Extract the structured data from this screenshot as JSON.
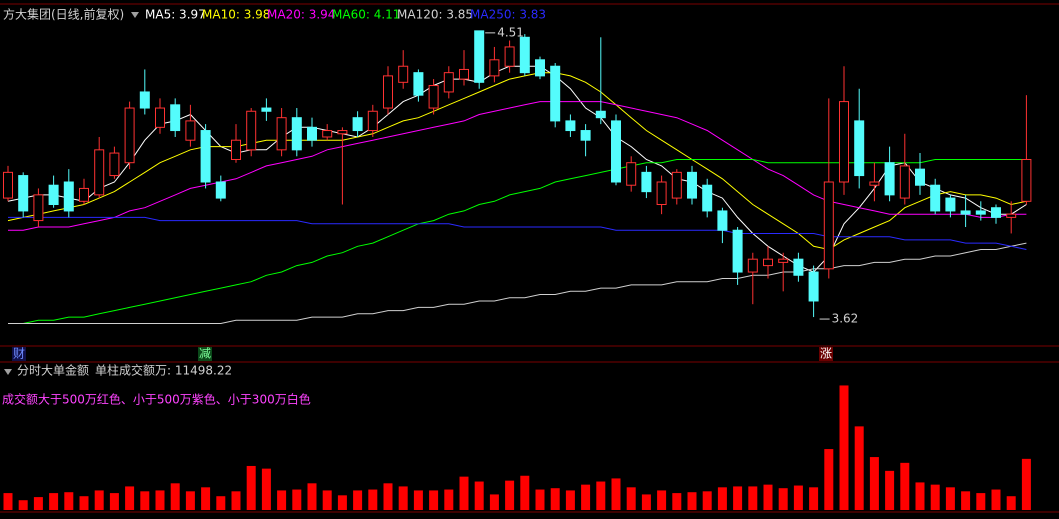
{
  "chart_data": [
    {
      "type": "candlestick",
      "title": "方大集团(日线,前复权)",
      "open": [
        3.99,
        4.06,
        3.92,
        4.03,
        4.04,
        3.98,
        4.0,
        4.06,
        4.1,
        4.32,
        4.21,
        4.28,
        4.17,
        4.2,
        4.04,
        4.11,
        4.14,
        4.27,
        4.14,
        4.24,
        4.21,
        4.18,
        4.19,
        4.24,
        4.2,
        4.27,
        4.35,
        4.38,
        4.27,
        4.32,
        4.36,
        4.51,
        4.37,
        4.4,
        4.49,
        4.42,
        4.4,
        4.23,
        4.2,
        4.26,
        4.23,
        4.03,
        4.07,
        3.97,
        3.99,
        4.07,
        4.03,
        3.95,
        3.89,
        3.76,
        3.78,
        3.79,
        3.8,
        3.76,
        3.77,
        4.04,
        4.23,
        4.03,
        4.1,
        3.99,
        4.08,
        4.03,
        3.99,
        3.95,
        3.95,
        3.96,
        3.93,
        3.98
      ],
      "high": [
        4.09,
        4.07,
        4.02,
        4.06,
        4.08,
        4.05,
        4.18,
        4.15,
        4.29,
        4.39,
        4.3,
        4.3,
        4.28,
        4.22,
        4.06,
        4.22,
        4.27,
        4.3,
        4.27,
        4.27,
        4.24,
        4.22,
        4.21,
        4.26,
        4.28,
        4.4,
        4.45,
        4.39,
        4.36,
        4.4,
        4.45,
        4.51,
        4.46,
        4.48,
        4.5,
        4.43,
        4.41,
        4.25,
        4.22,
        4.49,
        4.25,
        4.12,
        4.09,
        4.06,
        4.08,
        4.09,
        4.05,
        3.96,
        3.9,
        3.82,
        3.84,
        3.82,
        3.82,
        3.78,
        4.3,
        4.4,
        4.33,
        4.1,
        4.15,
        4.19,
        4.13,
        4.05,
        4.0,
        4.0,
        3.98,
        3.97,
        3.98,
        4.31
      ],
      "low": [
        3.98,
        3.93,
        3.9,
        3.96,
        3.93,
        3.97,
        3.99,
        4.05,
        4.08,
        4.25,
        4.19,
        4.18,
        4.15,
        4.02,
        3.98,
        4.1,
        4.12,
        4.23,
        4.12,
        4.12,
        4.15,
        4.17,
        3.97,
        4.18,
        4.18,
        4.25,
        4.33,
        4.29,
        4.25,
        4.3,
        4.34,
        4.33,
        4.35,
        4.38,
        4.37,
        4.36,
        4.21,
        4.18,
        4.12,
        4.22,
        4.03,
        4.01,
        3.99,
        3.94,
        3.97,
        3.97,
        3.93,
        3.85,
        3.72,
        3.66,
        3.74,
        3.7,
        3.73,
        3.62,
        3.74,
        4.0,
        4.02,
        3.98,
        3.98,
        3.97,
        4.0,
        3.94,
        3.93,
        3.9,
        3.92,
        3.91,
        3.88,
        3.97
      ],
      "close": [
        4.07,
        3.95,
        4.0,
        3.97,
        3.95,
        4.02,
        4.14,
        4.13,
        4.27,
        4.27,
        4.27,
        4.2,
        4.23,
        4.04,
        3.99,
        4.17,
        4.26,
        4.26,
        4.24,
        4.14,
        4.17,
        4.2,
        4.2,
        4.2,
        4.26,
        4.37,
        4.4,
        4.31,
        4.34,
        4.38,
        4.39,
        4.35,
        4.42,
        4.46,
        4.38,
        4.37,
        4.23,
        4.2,
        4.17,
        4.24,
        4.04,
        4.1,
        4.01,
        4.04,
        4.07,
        3.99,
        3.95,
        3.89,
        3.76,
        3.8,
        3.8,
        3.8,
        3.75,
        3.67,
        4.04,
        4.29,
        4.06,
        4.04,
        4.0,
        4.09,
        4.03,
        3.95,
        3.95,
        3.94,
        3.94,
        3.93,
        3.94,
        4.11
      ],
      "up_color": "#ff3232",
      "down_color": "#54fcfc",
      "series": [
        {
          "name": "MA5: 3.97",
          "color": "#ffffff",
          "values": [
            3.98,
            3.99,
            4.0,
            4.0,
            3.99,
            3.98,
            4.02,
            4.04,
            4.1,
            4.17,
            4.22,
            4.23,
            4.25,
            4.2,
            4.15,
            4.13,
            4.14,
            4.14,
            4.18,
            4.21,
            4.21,
            4.2,
            4.19,
            4.18,
            4.21,
            4.25,
            4.29,
            4.31,
            4.34,
            4.36,
            4.36,
            4.35,
            4.38,
            4.4,
            4.4,
            4.4,
            4.37,
            4.33,
            4.27,
            4.24,
            4.18,
            4.15,
            4.11,
            4.09,
            4.05,
            4.04,
            4.01,
            3.99,
            3.93,
            3.88,
            3.84,
            3.81,
            3.78,
            3.76,
            3.81,
            3.91,
            3.96,
            4.02,
            4.09,
            4.1,
            4.04,
            4.02,
            4.0,
            3.99,
            3.96,
            3.94,
            3.94,
            3.97
          ]
        },
        {
          "name": "MA10: 3.98",
          "color": "#ffff00",
          "values": [
            3.92,
            3.93,
            3.94,
            3.95,
            3.96,
            3.97,
            3.99,
            4.01,
            4.04,
            4.07,
            4.1,
            4.12,
            4.14,
            4.15,
            4.15,
            4.15,
            4.16,
            4.17,
            4.17,
            4.17,
            4.17,
            4.17,
            4.17,
            4.18,
            4.19,
            4.21,
            4.23,
            4.24,
            4.26,
            4.28,
            4.3,
            4.32,
            4.34,
            4.36,
            4.37,
            4.38,
            4.38,
            4.37,
            4.35,
            4.32,
            4.28,
            4.24,
            4.2,
            4.17,
            4.14,
            4.11,
            4.08,
            4.05,
            4.01,
            3.97,
            3.94,
            3.91,
            3.88,
            3.84,
            3.83,
            3.86,
            3.88,
            3.9,
            3.92,
            3.96,
            3.98,
            4.0,
            4.01,
            4.0,
            4.0,
            3.99,
            3.97,
            3.98
          ]
        },
        {
          "name": "MA20: 3.94",
          "color": "#ff00ff",
          "values": [
            3.89,
            3.89,
            3.9,
            3.9,
            3.9,
            3.91,
            3.92,
            3.93,
            3.95,
            3.96,
            3.98,
            4.0,
            4.02,
            4.03,
            4.04,
            4.05,
            4.07,
            4.09,
            4.1,
            4.11,
            4.12,
            4.14,
            4.15,
            4.16,
            4.17,
            4.18,
            4.19,
            4.2,
            4.21,
            4.22,
            4.23,
            4.25,
            4.26,
            4.27,
            4.28,
            4.29,
            4.29,
            4.29,
            4.29,
            4.29,
            4.28,
            4.27,
            4.26,
            4.25,
            4.24,
            4.22,
            4.2,
            4.17,
            4.14,
            4.11,
            4.08,
            4.06,
            4.03,
            4.0,
            3.98,
            3.97,
            3.96,
            3.95,
            3.94,
            3.94,
            3.94,
            3.94,
            3.94,
            3.94,
            3.93,
            3.93,
            3.94,
            3.94
          ]
        },
        {
          "name": "MA60: 4.11",
          "color": "#00ff00",
          "values": [
            3.6,
            3.6,
            3.61,
            3.61,
            3.62,
            3.62,
            3.63,
            3.64,
            3.65,
            3.66,
            3.67,
            3.68,
            3.69,
            3.7,
            3.71,
            3.72,
            3.73,
            3.75,
            3.76,
            3.78,
            3.79,
            3.81,
            3.82,
            3.84,
            3.85,
            3.87,
            3.89,
            3.91,
            3.92,
            3.94,
            3.95,
            3.97,
            3.98,
            4.0,
            4.01,
            4.02,
            4.04,
            4.05,
            4.06,
            4.07,
            4.08,
            4.09,
            4.1,
            4.1,
            4.11,
            4.11,
            4.11,
            4.11,
            4.11,
            4.11,
            4.1,
            4.1,
            4.1,
            4.1,
            4.1,
            4.1,
            4.1,
            4.1,
            4.1,
            4.1,
            4.1,
            4.11,
            4.11,
            4.11,
            4.11,
            4.11,
            4.11,
            4.11
          ]
        },
        {
          "name": "MA120: 3.85",
          "color": "#d0d0d0",
          "values": [
            3.6,
            3.6,
            3.6,
            3.6,
            3.6,
            3.6,
            3.6,
            3.6,
            3.6,
            3.6,
            3.6,
            3.6,
            3.6,
            3.6,
            3.6,
            3.61,
            3.61,
            3.61,
            3.61,
            3.61,
            3.62,
            3.62,
            3.62,
            3.63,
            3.63,
            3.64,
            3.64,
            3.65,
            3.65,
            3.66,
            3.66,
            3.67,
            3.67,
            3.68,
            3.68,
            3.69,
            3.69,
            3.7,
            3.7,
            3.71,
            3.71,
            3.72,
            3.72,
            3.72,
            3.73,
            3.73,
            3.73,
            3.74,
            3.74,
            3.75,
            3.75,
            3.76,
            3.76,
            3.77,
            3.77,
            3.78,
            3.78,
            3.79,
            3.79,
            3.8,
            3.8,
            3.81,
            3.81,
            3.82,
            3.83,
            3.83,
            3.84,
            3.85
          ]
        },
        {
          "name": "MA250: 3.83",
          "color": "#2a2aff",
          "values": [
            3.93,
            3.93,
            3.93,
            3.93,
            3.93,
            3.93,
            3.93,
            3.93,
            3.93,
            3.93,
            3.92,
            3.92,
            3.92,
            3.92,
            3.92,
            3.92,
            3.92,
            3.92,
            3.92,
            3.92,
            3.91,
            3.91,
            3.91,
            3.91,
            3.91,
            3.91,
            3.91,
            3.91,
            3.91,
            3.91,
            3.9,
            3.9,
            3.9,
            3.9,
            3.9,
            3.9,
            3.9,
            3.9,
            3.9,
            3.9,
            3.89,
            3.89,
            3.89,
            3.89,
            3.89,
            3.89,
            3.89,
            3.89,
            3.88,
            3.88,
            3.88,
            3.88,
            3.88,
            3.88,
            3.87,
            3.87,
            3.87,
            3.87,
            3.87,
            3.86,
            3.86,
            3.86,
            3.86,
            3.85,
            3.85,
            3.85,
            3.84,
            3.83
          ]
        }
      ],
      "ylim": [
        3.53,
        4.55
      ],
      "high_label": 4.51,
      "low_label": 3.62
    },
    {
      "type": "bar",
      "title": "分时大单金额",
      "subtitle": "单柱成交额万: 11498.22",
      "annotation": "成交额大于500万红色、小于500万紫色、小于300万白色",
      "values": [
        3800,
        2200,
        2900,
        3800,
        4000,
        3100,
        4400,
        3800,
        5300,
        4200,
        4400,
        6000,
        4200,
        5100,
        3100,
        4200,
        9900,
        9300,
        4400,
        4600,
        6000,
        4400,
        3300,
        4400,
        4600,
        6000,
        5300,
        4400,
        4400,
        4600,
        7500,
        6400,
        3500,
        6600,
        7700,
        4600,
        4900,
        4400,
        5700,
        6400,
        7100,
        5100,
        3500,
        4400,
        3800,
        4000,
        4200,
        5100,
        5300,
        5300,
        5700,
        4900,
        5500,
        5100,
        13700,
        28000,
        18800,
        11900,
        8800,
        10600,
        6200,
        5700,
        5100,
        4200,
        3800,
        4600,
        3100,
        11498.22
      ],
      "color": "#ff0000",
      "ylim": [
        0,
        29000
      ]
    }
  ],
  "markers": [
    "财",
    "减",
    "涨"
  ]
}
